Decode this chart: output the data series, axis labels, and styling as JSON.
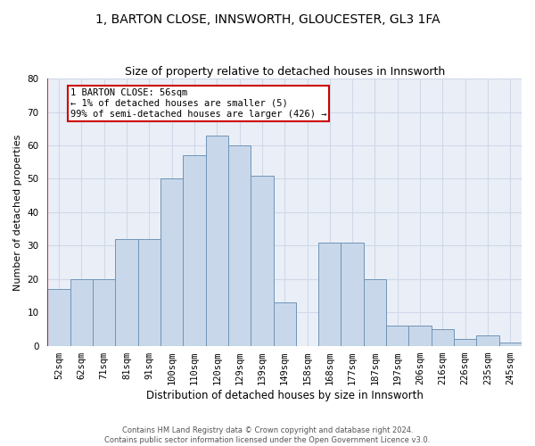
{
  "title1": "1, BARTON CLOSE, INNSWORTH, GLOUCESTER, GL3 1FA",
  "title2": "Size of property relative to detached houses in Innsworth",
  "xlabel": "Distribution of detached houses by size in Innsworth",
  "ylabel": "Number of detached properties",
  "bar_labels": [
    "52sqm",
    "62sqm",
    "71sqm",
    "81sqm",
    "91sqm",
    "100sqm",
    "110sqm",
    "120sqm",
    "129sqm",
    "139sqm",
    "149sqm",
    "158sqm",
    "168sqm",
    "177sqm",
    "187sqm",
    "197sqm",
    "206sqm",
    "216sqm",
    "226sqm",
    "235sqm",
    "245sqm"
  ],
  "bar_values": [
    17,
    20,
    20,
    32,
    32,
    50,
    57,
    63,
    60,
    51,
    13,
    0,
    31,
    31,
    20,
    6,
    6,
    5,
    2,
    3,
    1
  ],
  "bar_color": "#c8d8ea",
  "bar_edge_color": "#7094b8",
  "annotation_box_edge": "#cc0000",
  "annotation_text_line1": "1 BARTON CLOSE: 56sqm",
  "annotation_text_line2": "← 1% of detached houses are smaller (5)",
  "annotation_text_line3": "99% of semi-detached houses are larger (426) →",
  "ylim": [
    0,
    80
  ],
  "yticks": [
    0,
    10,
    20,
    30,
    40,
    50,
    60,
    70,
    80
  ],
  "grid_color": "#d0d8e8",
  "background_color": "#eaeff7",
  "footer_line1": "Contains HM Land Registry data © Crown copyright and database right 2024.",
  "footer_line2": "Contains public sector information licensed under the Open Government Licence v3.0.",
  "title1_fontsize": 10,
  "title2_fontsize": 9,
  "xlabel_fontsize": 8.5,
  "ylabel_fontsize": 8,
  "tick_fontsize": 7.5,
  "annotation_fontsize": 7.5
}
